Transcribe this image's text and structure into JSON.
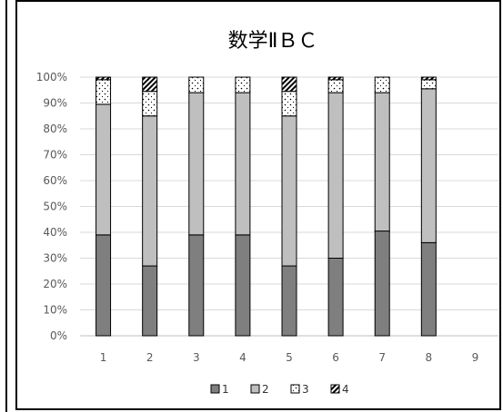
{
  "chart_data": {
    "type": "bar",
    "stacked": true,
    "percent": true,
    "title": "数学ⅡＢＣ",
    "categories": [
      "1",
      "2",
      "3",
      "4",
      "5",
      "6",
      "7",
      "8",
      "9"
    ],
    "series": [
      {
        "name": "1",
        "values": [
          39,
          27,
          39,
          39,
          27,
          30,
          40.5,
          36,
          0
        ],
        "color": "#7f7f7f"
      },
      {
        "name": "2",
        "values": [
          50.5,
          58,
          55,
          55,
          58,
          64,
          53.5,
          59.5,
          0
        ],
        "color": "#bfbfbf"
      },
      {
        "name": "3",
        "values": [
          9.5,
          9.5,
          6,
          6,
          9.5,
          5,
          6,
          3.5,
          0
        ],
        "color": "#ffffff"
      },
      {
        "name": "4",
        "values": [
          1,
          5.5,
          0,
          0,
          5.5,
          1,
          0,
          1,
          0
        ],
        "color": "#ffffff"
      }
    ],
    "ylim": [
      0,
      100
    ],
    "yticks": [
      "0%",
      "10%",
      "20%",
      "30%",
      "40%",
      "50%",
      "60%",
      "70%",
      "80%",
      "90%",
      "100%"
    ],
    "grid": true,
    "legend_position": "bottom"
  }
}
